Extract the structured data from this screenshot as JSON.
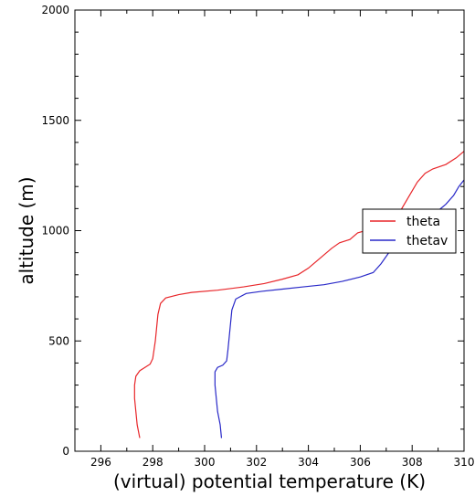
{
  "chart_data": {
    "type": "line",
    "xlabel": "(virtual) potential temperature (K)",
    "ylabel": "altitude (m)",
    "xlim": [
      295,
      310
    ],
    "ylim": [
      0,
      2000
    ],
    "xticks": [
      296,
      298,
      300,
      302,
      304,
      306,
      308,
      310
    ],
    "yticks": [
      0,
      500,
      1000,
      1500,
      2000
    ],
    "grid": false,
    "legend_position": "right",
    "series": [
      {
        "name": "theta",
        "color": "#e8262a",
        "points": [
          [
            297.5,
            60
          ],
          [
            297.4,
            120
          ],
          [
            297.35,
            180
          ],
          [
            297.3,
            240
          ],
          [
            297.3,
            300
          ],
          [
            297.35,
            340
          ],
          [
            297.5,
            365
          ],
          [
            297.7,
            380
          ],
          [
            297.9,
            395
          ],
          [
            298.0,
            420
          ],
          [
            298.05,
            460
          ],
          [
            298.1,
            500
          ],
          [
            298.15,
            560
          ],
          [
            298.2,
            620
          ],
          [
            298.3,
            670
          ],
          [
            298.5,
            695
          ],
          [
            299.0,
            710
          ],
          [
            299.5,
            720
          ],
          [
            300.5,
            730
          ],
          [
            301.5,
            745
          ],
          [
            302.3,
            760
          ],
          [
            303.0,
            780
          ],
          [
            303.6,
            800
          ],
          [
            304.0,
            830
          ],
          [
            304.3,
            860
          ],
          [
            304.6,
            890
          ],
          [
            304.9,
            920
          ],
          [
            305.2,
            945
          ],
          [
            305.6,
            960
          ],
          [
            305.9,
            990
          ],
          [
            306.5,
            1010
          ],
          [
            307.0,
            1030
          ],
          [
            307.3,
            1060
          ],
          [
            307.6,
            1100
          ],
          [
            307.9,
            1160
          ],
          [
            308.2,
            1220
          ],
          [
            308.5,
            1260
          ],
          [
            308.8,
            1280
          ],
          [
            309.3,
            1300
          ],
          [
            309.7,
            1330
          ],
          [
            310.0,
            1360
          ]
        ]
      },
      {
        "name": "thetav",
        "color": "#2929c8",
        "points": [
          [
            300.65,
            60
          ],
          [
            300.6,
            120
          ],
          [
            300.5,
            180
          ],
          [
            300.45,
            240
          ],
          [
            300.4,
            300
          ],
          [
            300.4,
            360
          ],
          [
            300.5,
            380
          ],
          [
            300.7,
            390
          ],
          [
            300.85,
            410
          ],
          [
            300.9,
            460
          ],
          [
            300.95,
            520
          ],
          [
            301.0,
            580
          ],
          [
            301.05,
            640
          ],
          [
            301.2,
            690
          ],
          [
            301.6,
            715
          ],
          [
            302.2,
            725
          ],
          [
            303.0,
            735
          ],
          [
            303.8,
            745
          ],
          [
            304.6,
            755
          ],
          [
            305.3,
            770
          ],
          [
            306.0,
            790
          ],
          [
            306.5,
            810
          ],
          [
            306.8,
            850
          ],
          [
            307.1,
            900
          ],
          [
            307.4,
            950
          ],
          [
            307.8,
            1000
          ],
          [
            308.2,
            1040
          ],
          [
            308.6,
            1060
          ],
          [
            309.0,
            1090
          ],
          [
            309.3,
            1120
          ],
          [
            309.6,
            1160
          ],
          [
            309.8,
            1200
          ],
          [
            310.0,
            1230
          ]
        ]
      }
    ]
  }
}
